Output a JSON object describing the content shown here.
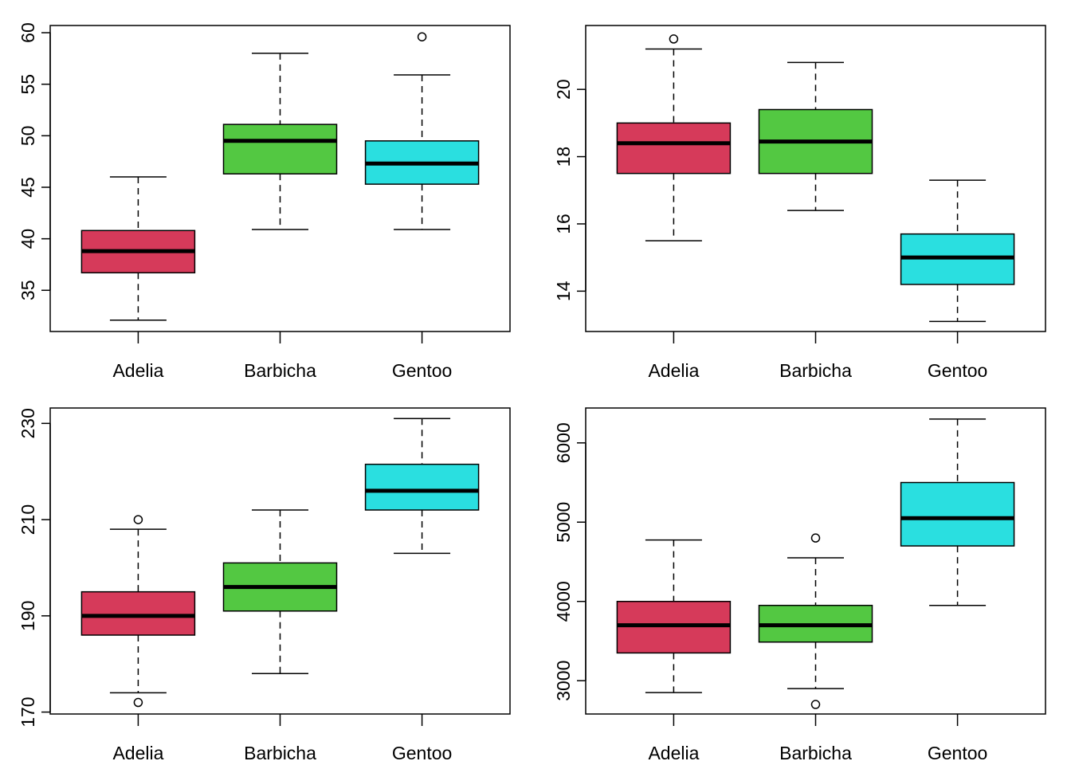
{
  "colors": {
    "Adelia": "#d63a5a",
    "Barbicha": "#53c842",
    "Gentoo": "#2adfe0"
  },
  "chart_data": [
    {
      "type": "box",
      "categories": [
        "Adelia",
        "Barbicha",
        "Gentoo"
      ],
      "ylim": [
        31.0,
        60.7
      ],
      "yticks": [
        35,
        40,
        45,
        50,
        55,
        60
      ],
      "boxes": [
        {
          "category": "Adelia",
          "whisker_low": 32.1,
          "q1": 36.7,
          "median": 38.8,
          "q3": 40.8,
          "whisker_high": 46.0,
          "outliers": []
        },
        {
          "category": "Barbicha",
          "whisker_low": 40.9,
          "q1": 46.3,
          "median": 49.5,
          "q3": 51.1,
          "whisker_high": 58.0,
          "outliers": []
        },
        {
          "category": "Gentoo",
          "whisker_low": 40.9,
          "q1": 45.3,
          "median": 47.3,
          "q3": 49.5,
          "whisker_high": 55.9,
          "outliers": [
            59.6
          ]
        }
      ]
    },
    {
      "type": "box",
      "categories": [
        "Adelia",
        "Barbicha",
        "Gentoo"
      ],
      "ylim": [
        12.8,
        21.9
      ],
      "yticks": [
        14,
        16,
        18,
        20
      ],
      "boxes": [
        {
          "category": "Adelia",
          "whisker_low": 15.5,
          "q1": 17.5,
          "median": 18.4,
          "q3": 19.0,
          "whisker_high": 21.2,
          "outliers": [
            21.5
          ]
        },
        {
          "category": "Barbicha",
          "whisker_low": 16.4,
          "q1": 17.5,
          "median": 18.45,
          "q3": 19.4,
          "whisker_high": 20.8,
          "outliers": []
        },
        {
          "category": "Gentoo",
          "whisker_low": 13.1,
          "q1": 14.2,
          "median": 15.0,
          "q3": 15.7,
          "whisker_high": 17.3,
          "outliers": []
        }
      ]
    },
    {
      "type": "box",
      "categories": [
        "Adelia",
        "Barbicha",
        "Gentoo"
      ],
      "ylim": [
        169.6,
        233.2
      ],
      "yticks": [
        170,
        190,
        210,
        230
      ],
      "boxes": [
        {
          "category": "Adelia",
          "whisker_low": 174,
          "q1": 186,
          "median": 190,
          "q3": 195,
          "whisker_high": 208,
          "outliers": [
            172,
            210
          ]
        },
        {
          "category": "Barbicha",
          "whisker_low": 178,
          "q1": 191,
          "median": 196,
          "q3": 201,
          "whisker_high": 212,
          "outliers": []
        },
        {
          "category": "Gentoo",
          "whisker_low": 203,
          "q1": 212,
          "median": 216,
          "q3": 221.5,
          "whisker_high": 231,
          "outliers": []
        }
      ]
    },
    {
      "type": "box",
      "categories": [
        "Adelia",
        "Barbicha",
        "Gentoo"
      ],
      "ylim": [
        2580,
        6440
      ],
      "yticks": [
        3000,
        4000,
        5000,
        6000
      ],
      "boxes": [
        {
          "category": "Adelia",
          "whisker_low": 2850,
          "q1": 3350,
          "median": 3700,
          "q3": 4000,
          "whisker_high": 4775,
          "outliers": []
        },
        {
          "category": "Barbicha",
          "whisker_low": 2900,
          "q1": 3487.5,
          "median": 3700,
          "q3": 3950,
          "whisker_high": 4550,
          "outliers": [
            2700,
            4800
          ]
        },
        {
          "category": "Gentoo",
          "whisker_low": 3950,
          "q1": 4700,
          "median": 5050,
          "q3": 5500,
          "whisker_high": 6300,
          "outliers": []
        }
      ]
    }
  ]
}
